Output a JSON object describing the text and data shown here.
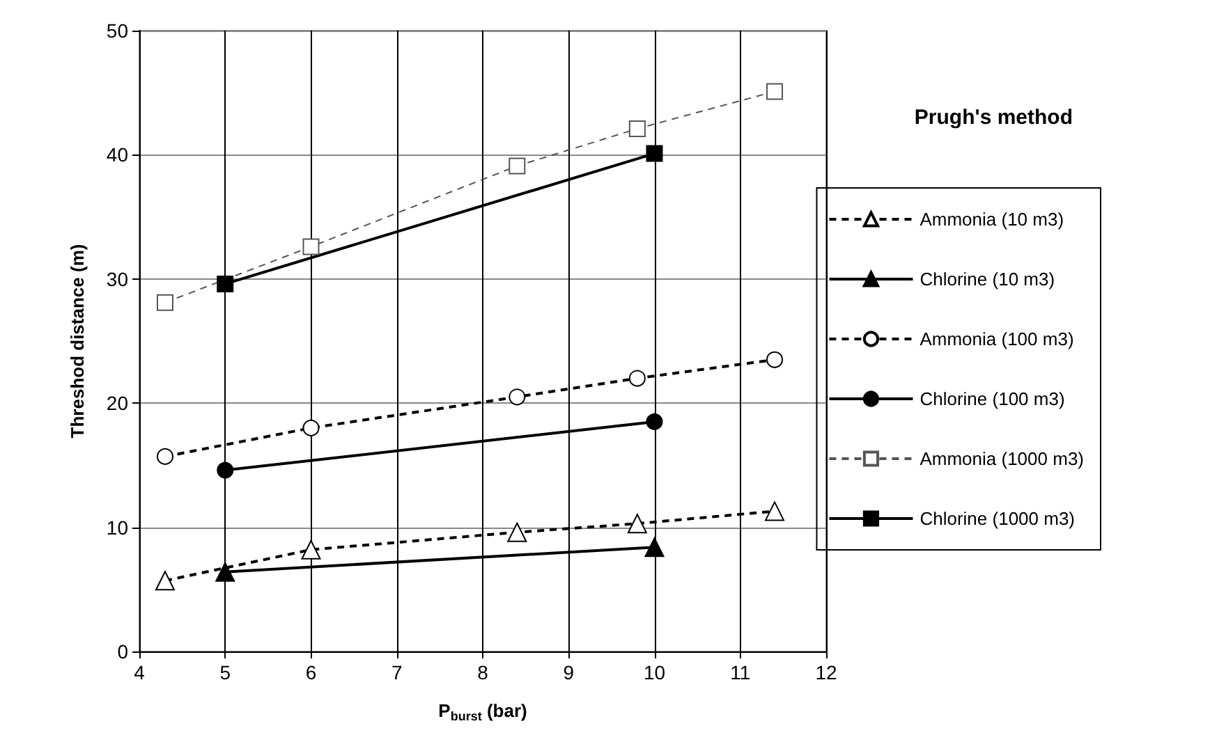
{
  "chart_data": {
    "type": "line",
    "xlabel": "P$_{burst}$ (bar)",
    "ylabel": "Threshod distance (m)",
    "legend_title": "Prugh's method",
    "xlim": [
      4,
      12
    ],
    "xticks": [
      4,
      5,
      6,
      7,
      8,
      9,
      10,
      11,
      12
    ],
    "ylim": [
      0,
      50
    ],
    "yticks": [
      0,
      10,
      20,
      30,
      40,
      50
    ],
    "grid": true,
    "legend": "right",
    "series": [
      {
        "name": "Ammonia (10 m3)",
        "color": "#000000",
        "marker": "triangle",
        "line_style": "dashed",
        "x": [
          4.3,
          6,
          8.4,
          9.8,
          11.4
        ],
        "values": [
          5.7,
          8.2,
          9.6,
          10.3,
          11.3
        ]
      },
      {
        "name": "Chlorine (10 m3)",
        "color": "#000000",
        "marker": "triangle",
        "line_style": "solid",
        "x": [
          5,
          10
        ],
        "values": [
          6.4,
          8.4
        ]
      },
      {
        "name": "Ammonia (100 m3)",
        "color": "#000000",
        "marker": "circle",
        "line_style": "dashed",
        "x": [
          4.3,
          6,
          8.4,
          9.8,
          11.4
        ],
        "values": [
          15.7,
          18.0,
          20.5,
          22.0,
          23.5
        ]
      },
      {
        "name": "Chlorine (100 m3)",
        "color": "#000000",
        "marker": "circle",
        "line_style": "solid",
        "x": [
          5,
          10
        ],
        "values": [
          14.6,
          18.5
        ]
      },
      {
        "name": "Ammonia (1000 m3)",
        "color": "#555555",
        "marker": "square",
        "line_style": "dashed",
        "x": [
          4.3,
          6,
          8.4,
          9.8,
          11.4
        ],
        "values": [
          28.1,
          32.6,
          39.1,
          42.1,
          45.1
        ]
      },
      {
        "name": "Chlorine (1000 m3)",
        "color": "#000000",
        "marker": "square",
        "line_style": "solid",
        "x": [
          5,
          10
        ],
        "values": [
          29.6,
          40.1
        ]
      }
    ]
  }
}
